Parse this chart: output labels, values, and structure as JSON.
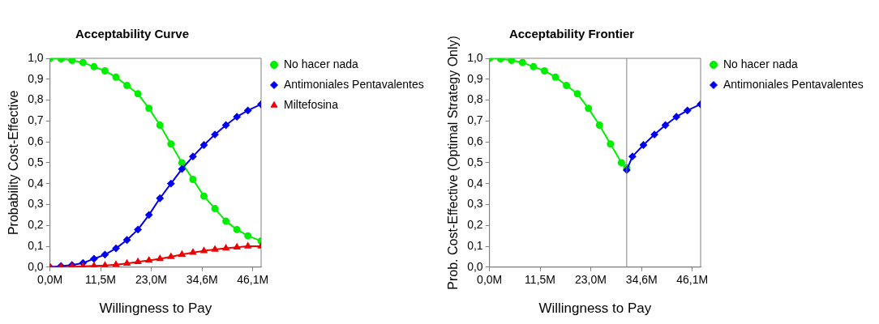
{
  "chart_data": [
    {
      "type": "line",
      "title": "Acceptability Curve",
      "xlabel": "Willingness to Pay",
      "ylabel": "Probability Cost-Effective",
      "x": [
        0,
        2.5,
        5,
        7.5,
        10,
        12.5,
        15,
        17.5,
        20,
        22.5,
        25,
        27.5,
        30,
        32.5,
        35,
        37.5,
        40,
        42.5,
        45,
        48
      ],
      "series": [
        {
          "name": "No hacer nada",
          "color": "#00ee00",
          "marker": "circle",
          "values": [
            1.0,
            0.998,
            0.99,
            0.98,
            0.96,
            0.94,
            0.91,
            0.87,
            0.83,
            0.76,
            0.68,
            0.59,
            0.5,
            0.42,
            0.34,
            0.28,
            0.22,
            0.18,
            0.15,
            0.125
          ]
        },
        {
          "name": "Antimoniales Pentavalentes",
          "color": "#0000ee",
          "marker": "diamond",
          "values": [
            0.0,
            0.005,
            0.01,
            0.02,
            0.04,
            0.06,
            0.09,
            0.13,
            0.18,
            0.25,
            0.33,
            0.4,
            0.47,
            0.53,
            0.585,
            0.635,
            0.68,
            0.72,
            0.75,
            0.78
          ]
        },
        {
          "name": "Miltefosina",
          "color": "#ee0000",
          "marker": "triangle",
          "values": [
            0.0,
            0.0,
            0.002,
            0.004,
            0.006,
            0.008,
            0.012,
            0.018,
            0.025,
            0.032,
            0.04,
            0.05,
            0.06,
            0.07,
            0.078,
            0.085,
            0.09,
            0.095,
            0.1,
            0.1
          ]
        }
      ],
      "xlim": [
        0,
        48
      ],
      "xticks": [
        {
          "value": 0,
          "label": "0,0M"
        },
        {
          "value": 11.5,
          "label": "11,5M"
        },
        {
          "value": 23.0,
          "label": "23,0M"
        },
        {
          "value": 34.6,
          "label": "34,6M"
        },
        {
          "value": 46.1,
          "label": "46,1M"
        }
      ],
      "ylim": [
        0,
        1
      ],
      "yticks": [
        {
          "value": 0,
          "label": "0,0"
        },
        {
          "value": 0.1,
          "label": "0,1"
        },
        {
          "value": 0.2,
          "label": "0,2"
        },
        {
          "value": 0.3,
          "label": "0,3"
        },
        {
          "value": 0.4,
          "label": "0,4"
        },
        {
          "value": 0.5,
          "label": "0,5"
        },
        {
          "value": 0.6,
          "label": "0,6"
        },
        {
          "value": 0.7,
          "label": "0,7"
        },
        {
          "value": 0.8,
          "label": "0,8"
        },
        {
          "value": 0.9,
          "label": "0,9"
        },
        {
          "value": 1,
          "label": "1,0"
        }
      ],
      "grid": false,
      "legend": "right"
    },
    {
      "type": "line",
      "title": "Acceptability Frontier",
      "xlabel": "Willingness to Pay",
      "ylabel": "Prob. Cost-Effective (Optimal Strategy Only)",
      "series": [
        {
          "name": "No hacer nada",
          "color": "#00ee00",
          "marker": "circle",
          "x": [
            0,
            2.5,
            5,
            7.5,
            10,
            12.5,
            15,
            17.5,
            20,
            22.5,
            25,
            27.5,
            30,
            31.2
          ],
          "values": [
            1.0,
            0.998,
            0.99,
            0.98,
            0.96,
            0.94,
            0.91,
            0.87,
            0.83,
            0.76,
            0.68,
            0.59,
            0.5,
            0.475
          ]
        },
        {
          "name": "Antimoniales Pentavalentes",
          "color": "#0000ee",
          "marker": "diamond",
          "x": [
            31.2,
            32.5,
            35,
            37.5,
            40,
            42.5,
            45,
            48
          ],
          "values": [
            0.465,
            0.53,
            0.585,
            0.635,
            0.68,
            0.72,
            0.75,
            0.78
          ]
        }
      ],
      "ref_lines": [
        {
          "axis": "x",
          "value": 31.2,
          "color": "#808080"
        }
      ],
      "xlim": [
        0,
        48
      ],
      "xticks": [
        {
          "value": 0,
          "label": "0,0M"
        },
        {
          "value": 11.5,
          "label": "11,5M"
        },
        {
          "value": 23.0,
          "label": "23,0M"
        },
        {
          "value": 34.6,
          "label": "34,6M"
        },
        {
          "value": 46.1,
          "label": "46,1M"
        }
      ],
      "ylim": [
        0,
        1
      ],
      "yticks": [
        {
          "value": 0,
          "label": "0,0"
        },
        {
          "value": 0.1,
          "label": "0,1"
        },
        {
          "value": 0.2,
          "label": "0,2"
        },
        {
          "value": 0.3,
          "label": "0,3"
        },
        {
          "value": 0.4,
          "label": "0,4"
        },
        {
          "value": 0.5,
          "label": "0,5"
        },
        {
          "value": 0.6,
          "label": "0,6"
        },
        {
          "value": 0.7,
          "label": "0,7"
        },
        {
          "value": 0.8,
          "label": "0,8"
        },
        {
          "value": 0.9,
          "label": "0,9"
        },
        {
          "value": 1,
          "label": "1,0"
        }
      ],
      "grid": false,
      "legend": "right"
    }
  ]
}
